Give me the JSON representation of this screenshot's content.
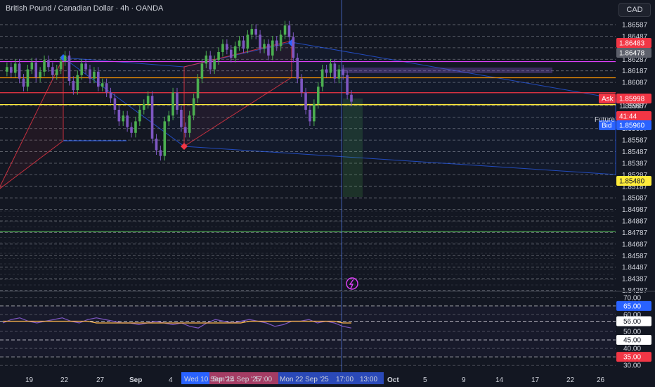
{
  "header": {
    "title": "British Pound / Canadian Dollar · 4h · OANDA",
    "currency": "CAD"
  },
  "colors": {
    "bg": "#131722",
    "up": "#4caf50",
    "down": "#7e57c2",
    "grid": "#b2b5be",
    "accent_red": "#f23645",
    "accent_blue": "#2962ff",
    "yellow": "#ffeb3b",
    "orange": "#ff9800",
    "magenta": "#e040fb",
    "green_line": "#4caf50"
  },
  "chart_data": [
    {
      "type": "line",
      "name": "price",
      "ylim": [
        1.8429,
        1.8663
      ],
      "y_ticks": [
        "1.86587",
        "1.86487",
        "1.86387",
        "1.86287",
        "1.86187",
        "1.86087",
        "1.85887",
        "1.85787",
        "1.85687",
        "1.85587",
        "1.85487",
        "1.85387",
        "1.85287",
        "1.85187",
        "1.85087",
        "1.84987",
        "1.84887",
        "1.84787",
        "1.84687",
        "1.84587",
        "1.84487",
        "1.84387",
        "1.84287"
      ],
      "x_labels": [
        "19",
        "22",
        "27",
        "Sep",
        "4",
        "Oct",
        "5",
        "9",
        "14",
        "17",
        "22",
        "26"
      ],
      "x_crosshair_labels": [
        "Wed 10 Sep '25",
        "Sun 14 Sep '25",
        "17:00",
        "Mon 22 Sep '25",
        "17:00",
        "13:00"
      ],
      "series": [
        {
          "values": [
            1.8618,
            1.8622,
            1.8617,
            1.8625,
            1.8612,
            1.8605,
            1.862,
            1.8626,
            1.8613,
            1.8618,
            1.8628,
            1.8622,
            1.8615,
            1.862,
            1.8627,
            1.8632,
            1.861,
            1.8602,
            1.8615,
            1.8625,
            1.862,
            1.8612,
            1.8618,
            1.8605,
            1.8608,
            1.86,
            1.8595,
            1.8585,
            1.8575,
            1.858,
            1.857,
            1.8565,
            1.8575,
            1.8585,
            1.859,
            1.8597,
            1.856,
            1.855,
            1.8545,
            1.8575,
            1.858,
            1.86,
            1.8585,
            1.857,
            1.8565,
            1.858,
            1.8595,
            1.8612,
            1.8625,
            1.8632,
            1.862,
            1.8628,
            1.8635,
            1.8642,
            1.8637,
            1.863,
            1.864,
            1.8645,
            1.8638,
            1.865,
            1.8655,
            1.865,
            1.8638,
            1.8642,
            1.8632,
            1.8645,
            1.864,
            1.865,
            1.8658,
            1.8648,
            1.863,
            1.8612,
            1.86,
            1.8585,
            1.8575,
            1.859,
            1.8605,
            1.862,
            1.8617,
            1.8625,
            1.8612,
            1.862,
            1.8615,
            1.8598,
            1.8592
          ]
        }
      ],
      "drawings": {
        "horizontal_levels": [
          {
            "value": 1.86267,
            "color": "magenta"
          },
          {
            "value": 1.86127,
            "color": "orange"
          },
          {
            "value": 1.85998,
            "color": "accent_red"
          },
          {
            "value": 1.85895,
            "color": "yellow"
          },
          {
            "value": 1.84797,
            "color": "green_line"
          }
        ]
      },
      "price_tags": [
        {
          "label": "",
          "value": "1.86483",
          "kind": "red"
        },
        {
          "label": "",
          "value": "1.86478",
          "kind": "gray"
        },
        {
          "label": "Ask",
          "value": "1.85998",
          "kind": "red"
        },
        {
          "label": "",
          "value": "41:44",
          "kind": "red"
        },
        {
          "label": "Bid",
          "value": "1.85960",
          "kind": "blue"
        },
        {
          "label": "",
          "value": "1.85480",
          "kind": "yellow"
        }
      ],
      "future_label": "Future",
      "partial_ticks": [
        "1.85997",
        "1.85960"
      ]
    },
    {
      "type": "line",
      "name": "RSI",
      "ylim": [
        28,
        72
      ],
      "y_ticks": [
        "70.00",
        "60.00",
        "50.00",
        "40.00",
        "30.00"
      ],
      "highlight_ticks": [
        {
          "value": "65.00",
          "kind": "blue"
        },
        {
          "value": "56.00",
          "kind": "white"
        },
        {
          "value": "45.00",
          "kind": "white"
        },
        {
          "value": "35.00",
          "kind": "red"
        }
      ],
      "series": [
        {
          "name": "",
          "values": [
            55,
            57,
            58,
            56,
            55,
            56,
            57,
            58,
            56,
            55,
            57,
            58,
            57,
            56,
            55,
            55,
            54,
            55,
            56,
            55,
            54,
            55,
            53,
            52,
            55,
            57,
            56,
            55,
            56,
            57,
            56,
            55,
            53,
            54,
            56,
            56,
            57,
            55,
            56,
            55,
            53,
            52
          ]
        },
        {
          "name": "",
          "values": [
            56,
            56,
            56,
            56,
            56,
            56,
            56,
            56,
            56,
            56,
            56,
            55,
            55,
            55,
            55,
            55,
            55,
            55,
            55,
            55,
            55,
            55,
            55,
            55,
            55,
            55,
            55,
            55,
            55,
            56,
            56,
            56,
            56,
            56,
            56,
            56,
            56,
            56,
            56,
            56,
            55,
            55
          ]
        }
      ]
    }
  ]
}
